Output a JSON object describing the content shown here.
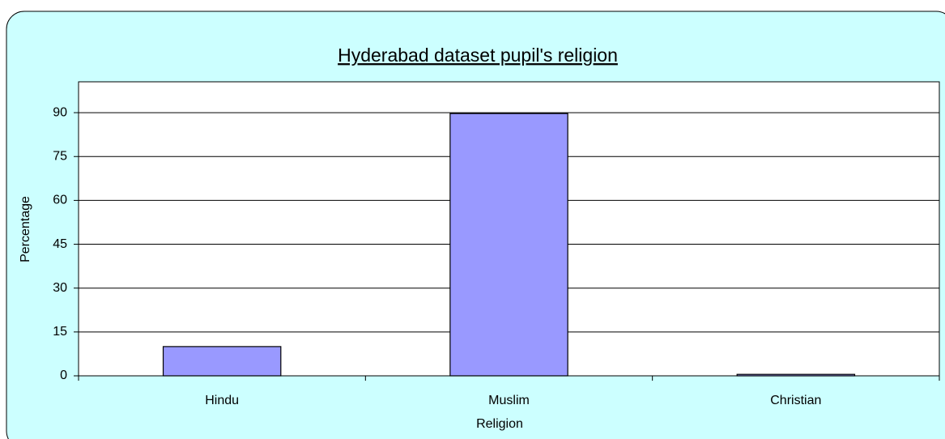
{
  "chart_data": {
    "type": "bar",
    "title": "Hyderabad dataset pupil's religion",
    "x_label": "Religion",
    "y_label": "Percentage",
    "categories": [
      "Hindu",
      "Muslim",
      "Christian"
    ],
    "values": [
      10,
      89.7,
      0.5
    ],
    "color": "#9999ff",
    "ylim": [
      0,
      100
    ],
    "yticks": [
      0,
      15,
      30,
      45,
      60,
      75,
      90
    ],
    "grid": true
  }
}
